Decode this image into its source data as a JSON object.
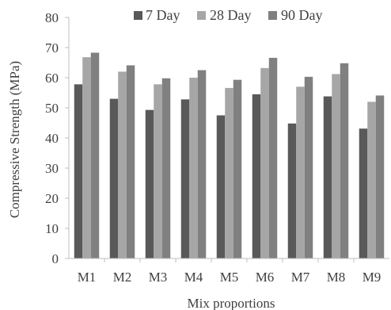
{
  "chart_data": {
    "type": "bar",
    "title": "",
    "xlabel": "Mix proportions",
    "ylabel": "Compressive Strength (MPa)",
    "categories": [
      "M1",
      "M2",
      "M3",
      "M4",
      "M5",
      "M6",
      "M7",
      "M8",
      "M9"
    ],
    "ylim": [
      0,
      80
    ],
    "yticks": [
      0,
      10,
      20,
      30,
      40,
      50,
      60,
      70,
      80
    ],
    "grid": false,
    "legend_position": "top",
    "series": [
      {
        "name": "7 Day",
        "color": "#595959",
        "values": [
          57.8,
          53.0,
          49.3,
          52.8,
          47.5,
          54.5,
          44.8,
          53.8,
          43.1
        ]
      },
      {
        "name": "28 Day",
        "color": "#a6a6a6",
        "values": [
          66.8,
          62.0,
          57.8,
          60.0,
          56.6,
          63.2,
          57.0,
          61.2,
          52.0
        ]
      },
      {
        "name": "90 Day",
        "color": "#808080",
        "values": [
          68.3,
          64.1,
          59.8,
          62.5,
          59.3,
          66.6,
          60.3,
          64.8,
          54.1
        ]
      }
    ]
  }
}
